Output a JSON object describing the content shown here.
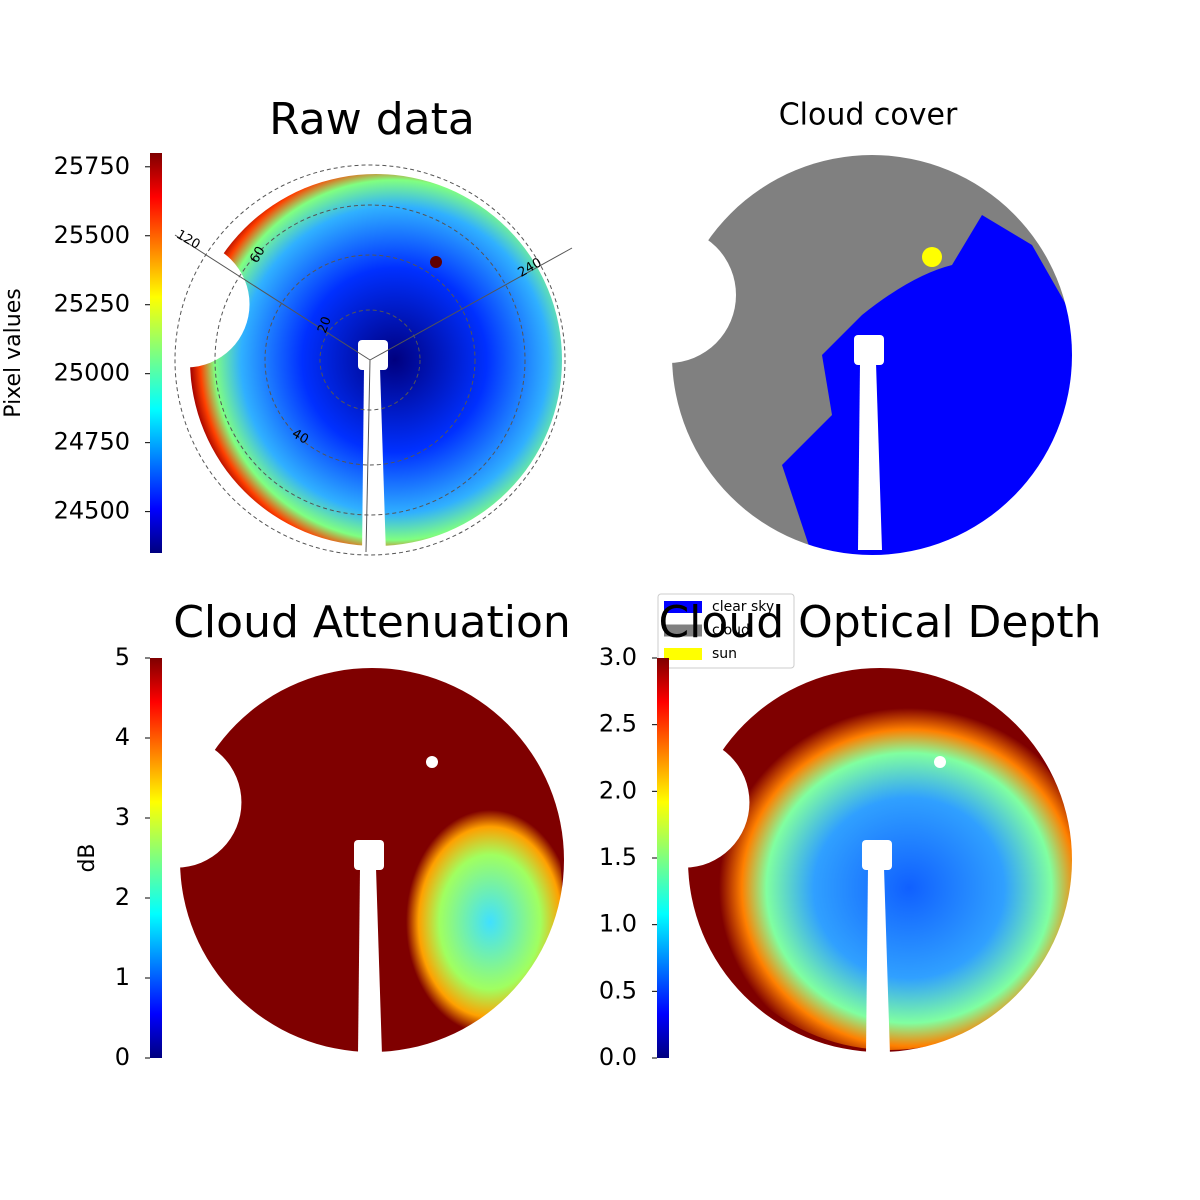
{
  "chart_data": [
    {
      "type": "image",
      "title": "Raw data",
      "colormap": "jet",
      "colorbar": {
        "label": "Pixel values",
        "ylim": [
          24350,
          25800
        ],
        "yticks": [
          24500,
          24750,
          25000,
          25250,
          25500,
          25750
        ]
      },
      "annotations": [
        "120",
        "60",
        "240",
        "20",
        "40"
      ]
    },
    {
      "type": "image",
      "title": "Cloud cover",
      "legend": [
        {
          "name": "clear sky",
          "color": "#0000ff"
        },
        {
          "name": "cloud",
          "color": "#808080"
        },
        {
          "name": "sun",
          "color": "#ffff00"
        }
      ]
    },
    {
      "type": "image",
      "title": "Cloud Attenuation",
      "colormap": "jet",
      "colorbar": {
        "label": "dB",
        "ylim": [
          0,
          5
        ],
        "yticks": [
          0,
          1,
          2,
          3,
          4,
          5
        ]
      }
    },
    {
      "type": "image",
      "title": "Cloud Optical Depth",
      "colormap": "jet",
      "colorbar": {
        "ylim": [
          0,
          3
        ],
        "yticks": [
          {
            "value": 0,
            "label": "0.0"
          },
          0.5,
          {
            "value": 1,
            "label": "1.0"
          },
          1.5,
          {
            "value": 2,
            "label": "2.0"
          },
          2.5,
          {
            "value": 3,
            "label": "3.0"
          }
        ]
      }
    }
  ]
}
